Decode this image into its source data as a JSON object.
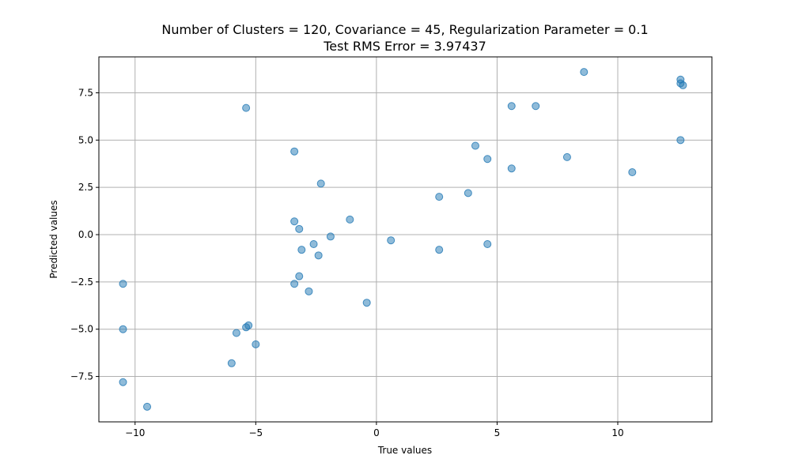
{
  "chart_data": {
    "type": "scatter",
    "title": "Number of Clusters = 120, Covariance = 45, Regularization Parameter = 0.1",
    "subtitle": "Test RMS Error = 3.97437",
    "xlabel": "True values",
    "ylabel": "Predicted values",
    "xlim": [
      -11.5,
      13.9
    ],
    "ylim": [
      -9.9,
      9.4
    ],
    "xticks": [
      -10,
      -5,
      0,
      5,
      10
    ],
    "xtick_labels": [
      "−10",
      "−5",
      "0",
      "5",
      "10"
    ],
    "yticks": [
      -7.5,
      -5.0,
      -2.5,
      0.0,
      2.5,
      5.0,
      7.5
    ],
    "ytick_labels": [
      "−7.5",
      "−5.0",
      "−2.5",
      "0.0",
      "2.5",
      "5.0",
      "7.5"
    ],
    "grid": true,
    "marker_color": "#1f77b4",
    "marker_alpha": 0.5,
    "points": [
      {
        "x": -10.5,
        "y": -2.6
      },
      {
        "x": -10.5,
        "y": -5.0
      },
      {
        "x": -10.5,
        "y": -7.8
      },
      {
        "x": -9.5,
        "y": -9.1
      },
      {
        "x": -6.0,
        "y": -6.8
      },
      {
        "x": -5.8,
        "y": -5.2
      },
      {
        "x": -5.4,
        "y": -4.9
      },
      {
        "x": -5.3,
        "y": -4.8
      },
      {
        "x": -5.0,
        "y": -5.8
      },
      {
        "x": -5.4,
        "y": 6.7
      },
      {
        "x": -3.4,
        "y": 4.4
      },
      {
        "x": -3.4,
        "y": 0.7
      },
      {
        "x": -3.2,
        "y": 0.3
      },
      {
        "x": -3.1,
        "y": -0.8
      },
      {
        "x": -3.2,
        "y": -2.2
      },
      {
        "x": -3.4,
        "y": -2.6
      },
      {
        "x": -2.8,
        "y": -3.0
      },
      {
        "x": -2.6,
        "y": -0.5
      },
      {
        "x": -2.4,
        "y": -1.1
      },
      {
        "x": -2.3,
        "y": 2.7
      },
      {
        "x": -1.9,
        "y": -0.1
      },
      {
        "x": -1.1,
        "y": 0.8
      },
      {
        "x": -0.4,
        "y": -3.6
      },
      {
        "x": 0.6,
        "y": -0.3
      },
      {
        "x": 2.6,
        "y": 2.0
      },
      {
        "x": 2.6,
        "y": -0.8
      },
      {
        "x": 3.8,
        "y": 2.2
      },
      {
        "x": 4.1,
        "y": 4.7
      },
      {
        "x": 4.6,
        "y": 4.0
      },
      {
        "x": 4.6,
        "y": -0.5
      },
      {
        "x": 5.6,
        "y": 6.8
      },
      {
        "x": 5.6,
        "y": 3.5
      },
      {
        "x": 6.6,
        "y": 6.8
      },
      {
        "x": 7.9,
        "y": 4.1
      },
      {
        "x": 8.6,
        "y": 8.6
      },
      {
        "x": 10.6,
        "y": 3.3
      },
      {
        "x": 12.6,
        "y": 8.2
      },
      {
        "x": 12.6,
        "y": 8.0
      },
      {
        "x": 12.7,
        "y": 7.9
      },
      {
        "x": 12.6,
        "y": 5.0
      }
    ]
  }
}
